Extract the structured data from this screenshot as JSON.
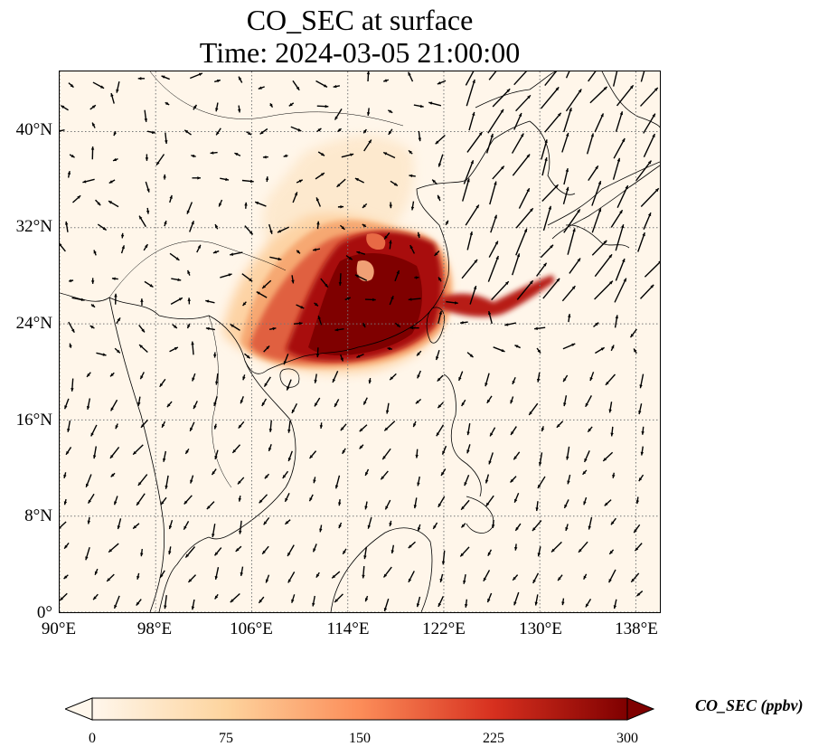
{
  "title": {
    "line1": "CO_SEC at surface",
    "line2": "Time: 2024-03-05 21:00:00"
  },
  "map": {
    "projection": "PlateCarree",
    "lon_range": [
      90,
      140
    ],
    "lat_range": [
      0,
      45
    ],
    "background_color": "#fff6ea",
    "gridlines": "dotted",
    "coastline_color": "#000000",
    "lat_ticks": [
      {
        "value": 0,
        "label": "0°"
      },
      {
        "value": 8,
        "label": "8°N"
      },
      {
        "value": 16,
        "label": "16°N"
      },
      {
        "value": 24,
        "label": "24°N"
      },
      {
        "value": 32,
        "label": "32°N"
      },
      {
        "value": 40,
        "label": "40°N"
      }
    ],
    "lon_ticks": [
      {
        "value": 90,
        "label": "90°E"
      },
      {
        "value": 98,
        "label": "98°E"
      },
      {
        "value": 106,
        "label": "106°E"
      },
      {
        "value": 114,
        "label": "114°E"
      },
      {
        "value": 122,
        "label": "122°E"
      },
      {
        "value": 130,
        "label": "130°E"
      },
      {
        "value": 138,
        "label": "138°E"
      }
    ],
    "wind_vector_icon": "arrow-icon"
  },
  "colorbar": {
    "label": "CO_SEC (ppbv)",
    "colormap": "OrRd",
    "colors": [
      "#fff7ec",
      "#fdd49e",
      "#fc8d59",
      "#d7301f",
      "#7f0000"
    ],
    "range": [
      0,
      300
    ],
    "extend": "both",
    "ticks": [
      {
        "value": 0,
        "label": "0"
      },
      {
        "value": 75,
        "label": "75"
      },
      {
        "value": 150,
        "label": "150"
      },
      {
        "value": 225,
        "label": "225"
      },
      {
        "value": 300,
        "label": "300"
      }
    ]
  }
}
